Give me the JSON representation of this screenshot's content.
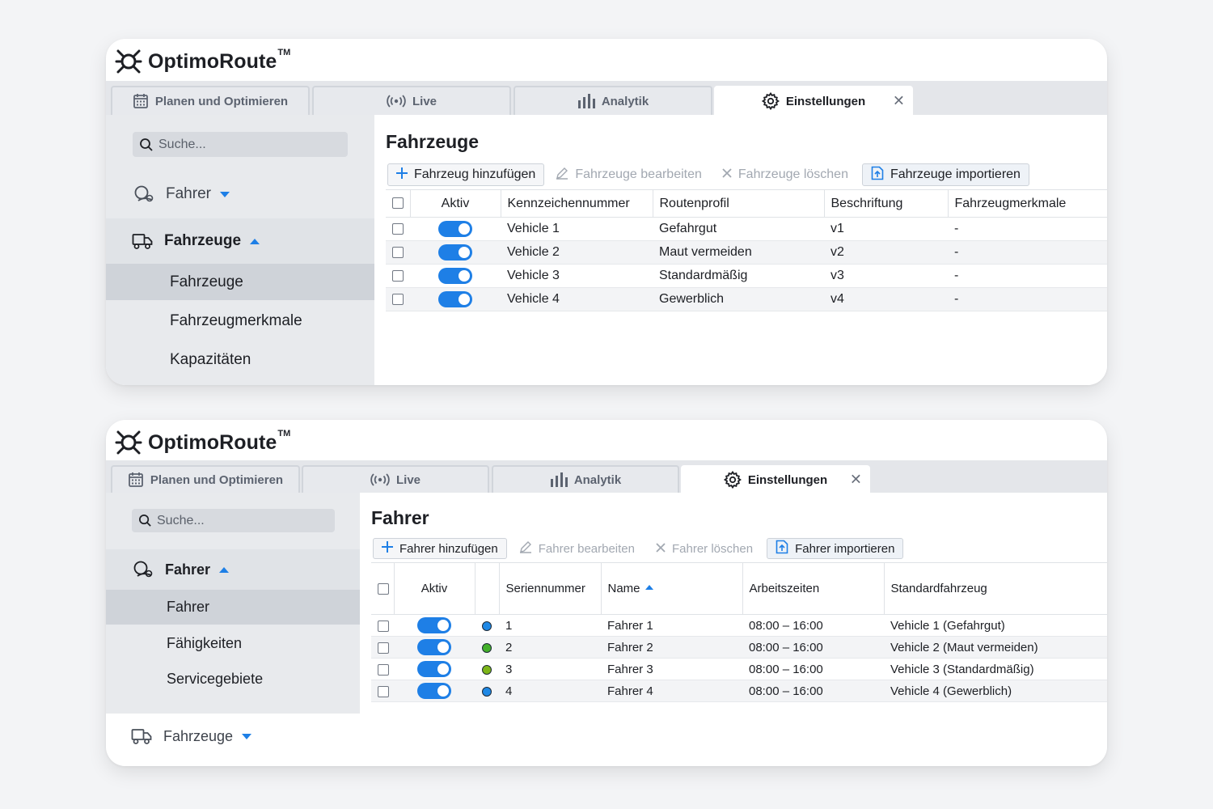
{
  "app": {
    "name": "OptimoRoute",
    "trademark": "TM"
  },
  "tabs": [
    {
      "label": "Planen und Optimieren",
      "icon": "calendar-icon"
    },
    {
      "label": "Live",
      "icon": "broadcast-icon"
    },
    {
      "label": "Analytik",
      "icon": "bar-chart-icon"
    },
    {
      "label": "Einstellungen",
      "icon": "gear-icon",
      "active": true,
      "close": "✕"
    }
  ],
  "colors": {
    "accent": "#1e7fe6",
    "sidebar_bg": "#e8eaed",
    "selected_bg": "#cfd3d9"
  },
  "vehicles_screen": {
    "search_placeholder": "Suche...",
    "nav": {
      "fahrer": "Fahrer",
      "fahrzeuge": "Fahrzeuge",
      "sub": [
        "Fahrzeuge",
        "Fahrzeugmerkmale",
        "Kapazitäten"
      ]
    },
    "title": "Fahrzeuge",
    "toolbar": {
      "add": "Fahrzeug hinzufügen",
      "edit": "Fahrzeuge bearbeiten",
      "delete": "Fahrzeuge löschen",
      "import": "Fahrzeuge importieren"
    },
    "columns": [
      "Aktiv",
      "Kennzeichennummer",
      "Routenprofil",
      "Beschriftung",
      "Fahrzeugmerkmale"
    ],
    "rows": [
      {
        "plate": "Vehicle 1",
        "profile": "Gefahrgut",
        "label": "v1",
        "features": "-",
        "active": true
      },
      {
        "plate": "Vehicle 2",
        "profile": "Maut vermeiden",
        "label": "v2",
        "features": "-",
        "active": true
      },
      {
        "plate": "Vehicle 3",
        "profile": "Standardmäßig",
        "label": "v3",
        "features": "-",
        "active": true
      },
      {
        "plate": "Vehicle 4",
        "profile": "Gewerblich",
        "label": "v4",
        "features": "-",
        "active": true
      }
    ]
  },
  "drivers_screen": {
    "search_placeholder": "Suche...",
    "nav": {
      "fahrer": "Fahrer",
      "sub": [
        "Fahrer",
        "Fähigkeiten",
        "Servicegebiete"
      ],
      "fahrzeuge": "Fahrzeuge"
    },
    "title": "Fahrer",
    "toolbar": {
      "add": "Fahrer hinzufügen",
      "edit": "Fahrer bearbeiten",
      "delete": "Fahrer löschen",
      "import": "Fahrer importieren"
    },
    "columns": [
      "Aktiv",
      "Seriennummer",
      "Name",
      "Arbeitszeiten",
      "Standardfahrzeug"
    ],
    "rows": [
      {
        "serial": "1",
        "name": "Fahrer 1",
        "hours": "08:00 – 16:00",
        "vehicle": "Vehicle 1 (Gefahrgut)",
        "dot_color": "#1e88e5",
        "active": true
      },
      {
        "serial": "2",
        "name": "Fahrer 2",
        "hours": "08:00 – 16:00",
        "vehicle": "Vehicle 2 (Maut vermeiden)",
        "dot_color": "#43b02a",
        "active": true
      },
      {
        "serial": "3",
        "name": "Fahrer 3",
        "hours": "08:00 – 16:00",
        "vehicle": "Vehicle 3 (Standardmäßig)",
        "dot_color": "#7cb518",
        "active": true
      },
      {
        "serial": "4",
        "name": "Fahrer 4",
        "hours": "08:00 – 16:00",
        "vehicle": "Vehicle 4 (Gewerblich)",
        "dot_color": "#1e88e5",
        "active": true
      }
    ]
  }
}
